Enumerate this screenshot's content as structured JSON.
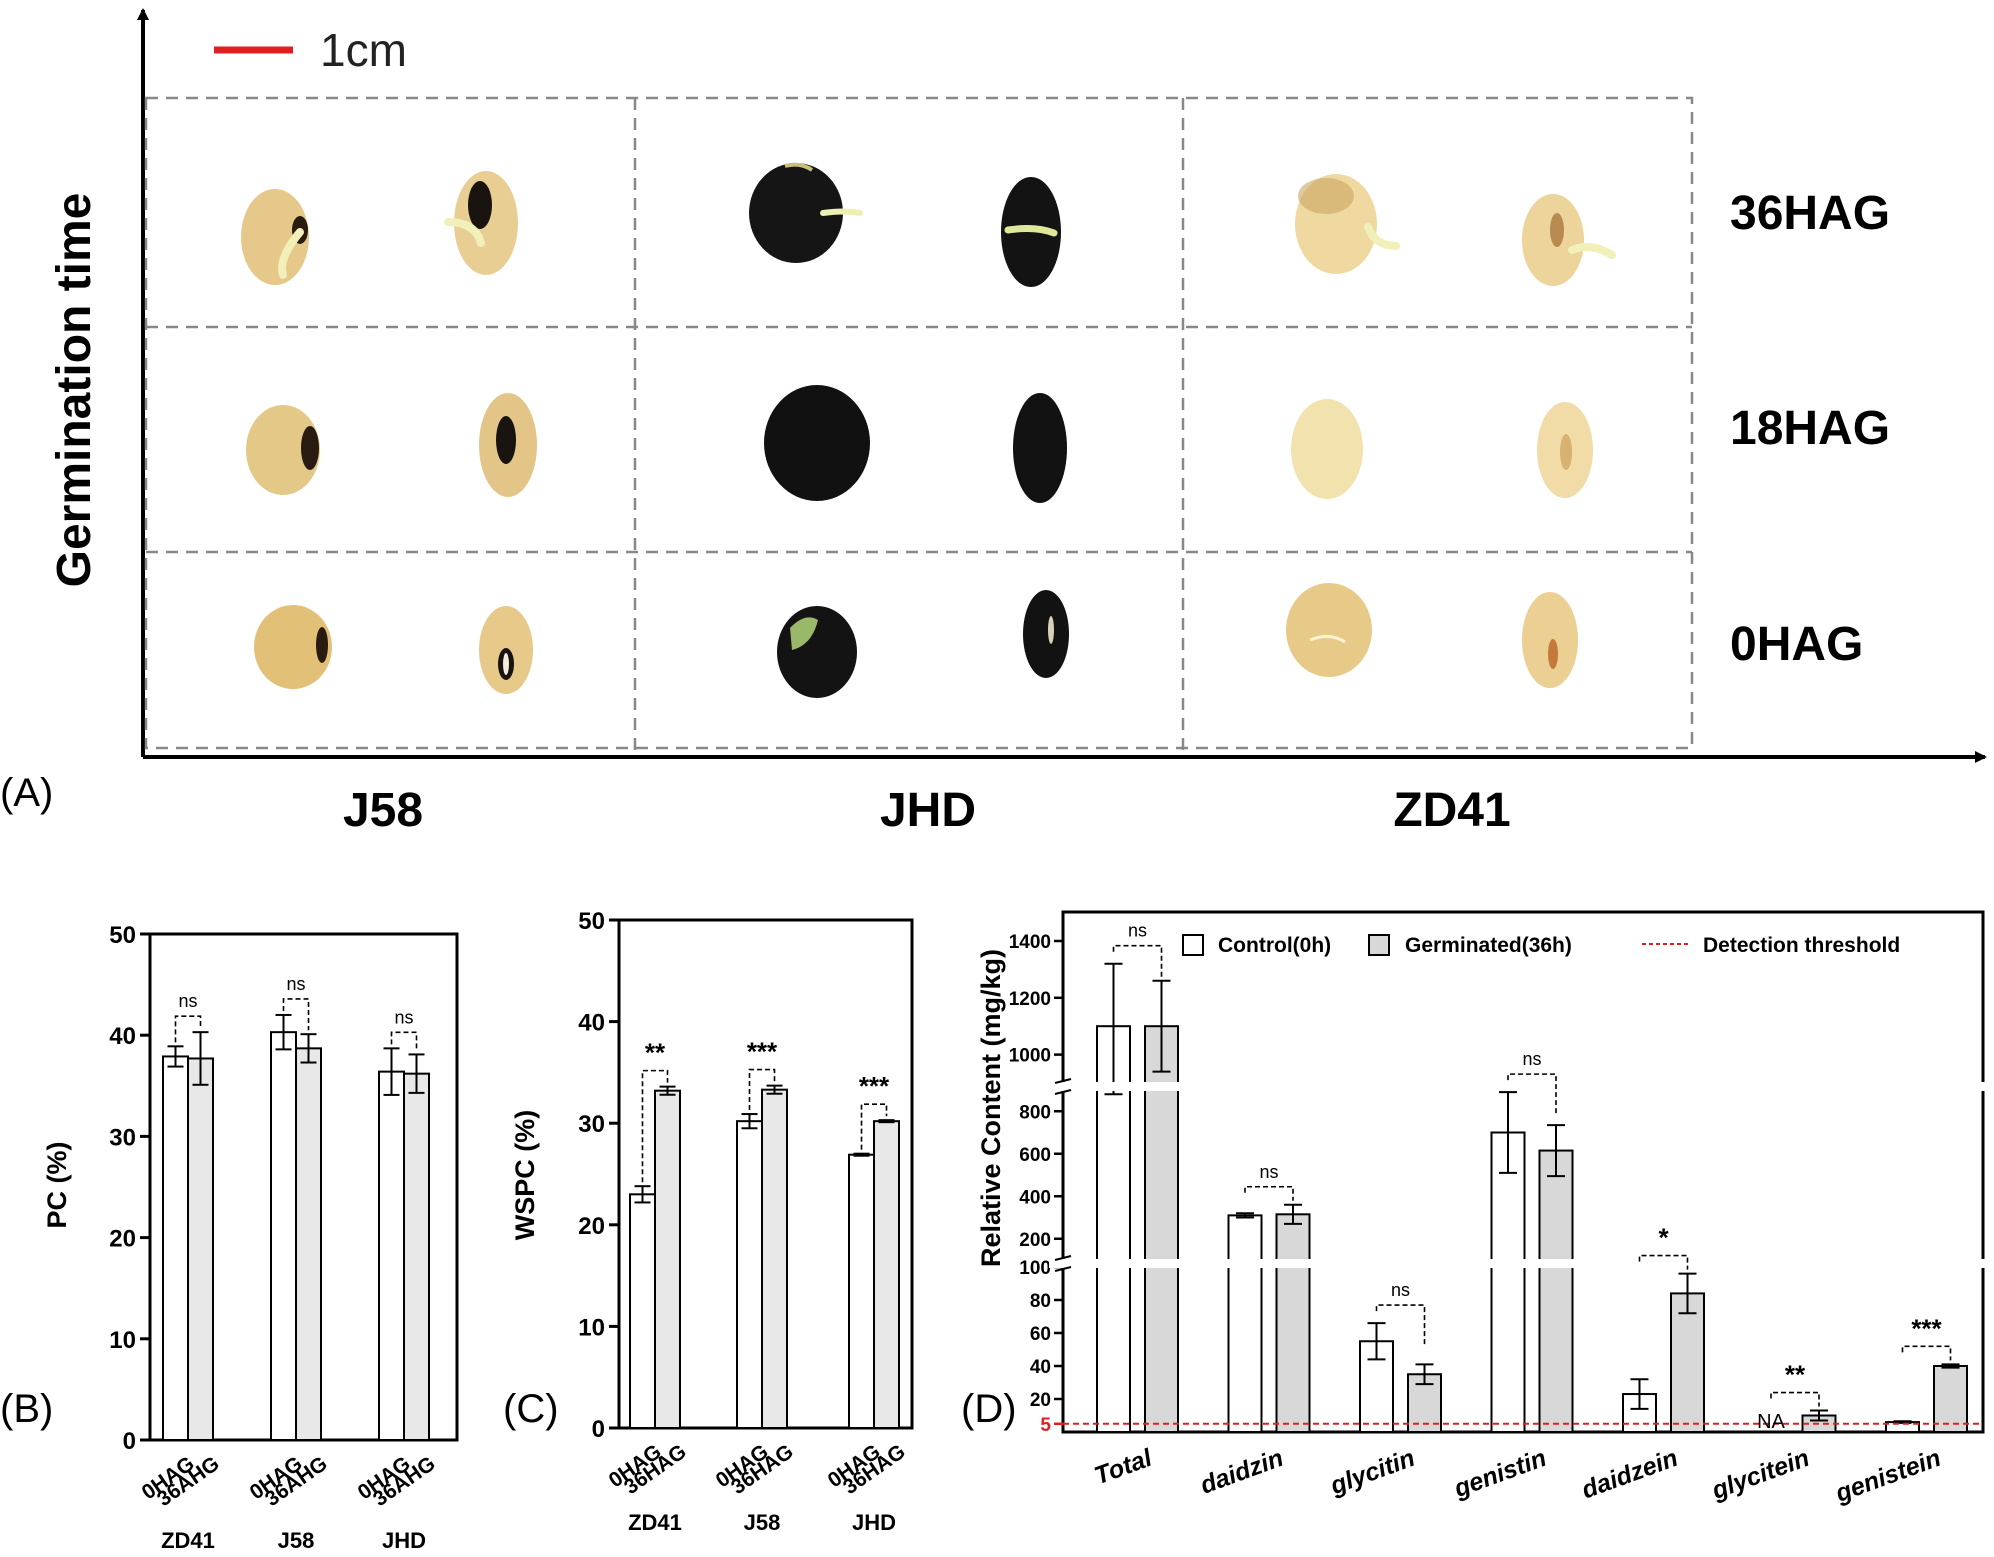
{
  "panel_a": {
    "label": "(A)",
    "scale_bar_label": "1cm",
    "y_axis_title": "Germination time",
    "rows": [
      "36HAG",
      "18HAG",
      "0HAG"
    ],
    "columns": [
      "J58",
      "JHD",
      "ZD41"
    ],
    "colors": {
      "scale_bar": "#e02020",
      "seed_light": "#e8cc8a",
      "seed_dark": "#141414",
      "sprout": "#eef0b0",
      "grid": "#888888"
    }
  },
  "chart_data": [
    {
      "type": "bar",
      "panel": "(B)",
      "ylabel": "PC (%)",
      "ylim": [
        0,
        50
      ],
      "yticks": [
        0,
        10,
        20,
        30,
        40,
        50
      ],
      "groups": [
        "ZD41",
        "J58",
        "JHD"
      ],
      "bar_labels": [
        "0HAG",
        "36AHG"
      ],
      "series": [
        {
          "name": "0HAG",
          "color": "#ffffff",
          "values": [
            37.9,
            40.3,
            36.4
          ],
          "errors": [
            1.0,
            1.7,
            2.3
          ]
        },
        {
          "name": "36AHG",
          "color": "#e8e8e8",
          "values": [
            37.7,
            38.7,
            36.2
          ],
          "errors": [
            2.6,
            1.4,
            1.9
          ]
        }
      ],
      "significance": [
        "ns",
        "ns",
        "ns"
      ]
    },
    {
      "type": "bar",
      "panel": "(C)",
      "ylabel": "WSPC (%)",
      "ylim": [
        0,
        50
      ],
      "yticks": [
        0,
        10,
        20,
        30,
        40,
        50
      ],
      "groups": [
        "ZD41",
        "J58",
        "JHD"
      ],
      "bar_labels": [
        "0HAG",
        "36HAG"
      ],
      "series": [
        {
          "name": "0HAG",
          "color": "#ffffff",
          "values": [
            23.0,
            30.2,
            26.9
          ],
          "errors": [
            0.8,
            0.7,
            0.1
          ]
        },
        {
          "name": "36HAG",
          "color": "#e8e8e8",
          "values": [
            33.2,
            33.3,
            30.2
          ],
          "errors": [
            0.4,
            0.4,
            0.1
          ]
        }
      ],
      "significance": [
        "**",
        "***",
        "***"
      ]
    },
    {
      "type": "bar",
      "panel": "(D)",
      "ylabel": "Relative Content (mg/kg)",
      "y_axis_broken": true,
      "yticks": [
        5,
        20,
        40,
        60,
        80,
        100,
        200,
        400,
        600,
        800,
        1000,
        1200,
        1400
      ],
      "categories": [
        "Total",
        "daidzin",
        "glycitin",
        "genistin",
        "daidzein",
        "glycitein",
        "genistein"
      ],
      "series": [
        {
          "name": "Control(0h)",
          "color": "#ffffff",
          "values": [
            1100,
            310,
            55,
            700,
            23,
            0,
            6
          ],
          "errors": [
            220,
            10,
            11,
            190,
            9,
            0,
            0.5
          ]
        },
        {
          "name": "Germinated(36h)",
          "color": "#d8d8d8",
          "values": [
            1100,
            315,
            35,
            615,
            84,
            10,
            40
          ],
          "errors": [
            160,
            45,
            6,
            120,
            12,
            3,
            1
          ]
        }
      ],
      "threshold": {
        "name": "Detection threshold",
        "value": 5,
        "label": "5",
        "color": "#e02020"
      },
      "na_label": "NA",
      "significance": [
        "ns",
        "ns",
        "ns",
        "ns",
        "*",
        "**",
        "***"
      ]
    }
  ]
}
